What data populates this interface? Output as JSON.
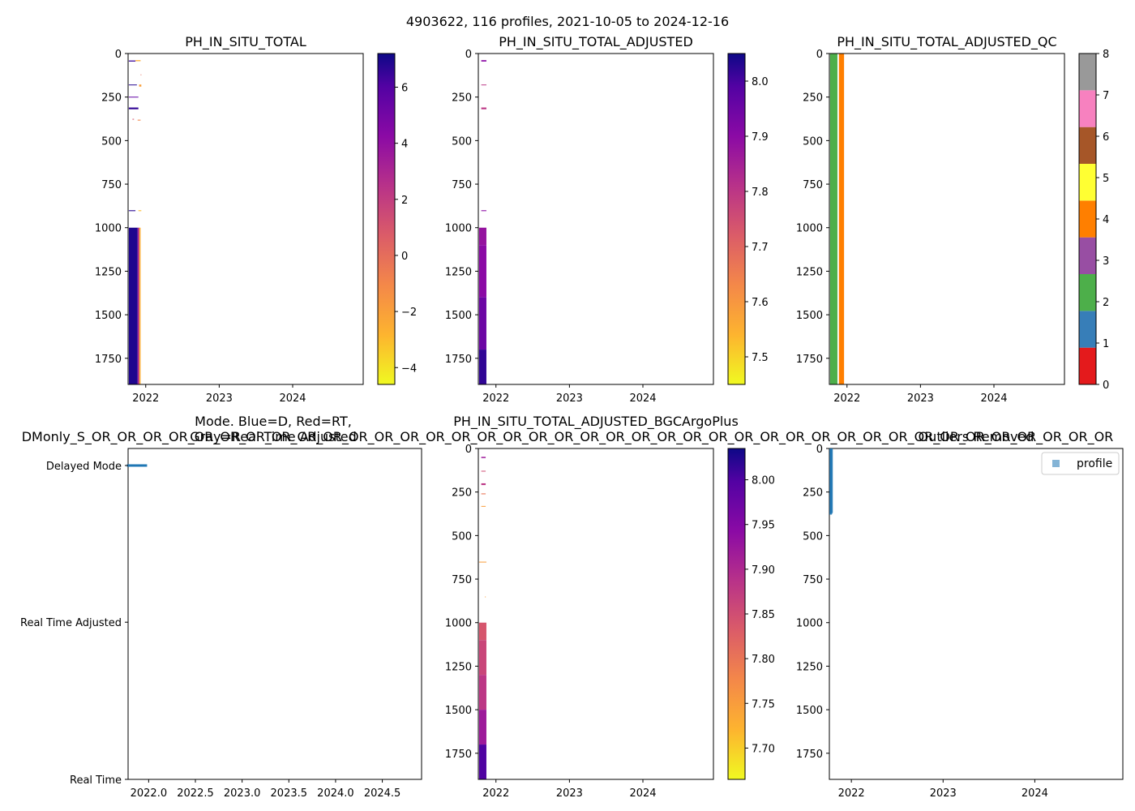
{
  "suptitle": "4903622, 116 profiles, 2021-10-05 to 2024-12-16",
  "chart_data": [
    {
      "type": "heatmap",
      "title": "PH_IN_SITU_TOTAL",
      "x_ticks": [
        "2022",
        "2023",
        "2024"
      ],
      "x_tick_years": [
        2022,
        2023,
        2024
      ],
      "xlim_years": [
        2021.76,
        2024.96
      ],
      "y_ticks": [
        0,
        250,
        500,
        750,
        1000,
        1250,
        1500,
        1750
      ],
      "ylim": [
        1900,
        0
      ],
      "colormap": "plasma_r",
      "colorbar_ticks": [
        -4,
        -2,
        0,
        2,
        4,
        6
      ],
      "colorbar_range": [
        -4.6,
        7.2
      ],
      "segments": [
        {
          "t0": 2021.77,
          "t1": 2021.86,
          "d0": 40,
          "d1": 46,
          "value": 6.5
        },
        {
          "t0": 2021.86,
          "t1": 2021.93,
          "d0": 38,
          "d1": 44,
          "value": -2.5
        },
        {
          "t0": 2021.93,
          "t1": 2021.94,
          "d0": 120,
          "d1": 124,
          "value": 0
        },
        {
          "t0": 2021.77,
          "t1": 2021.88,
          "d0": 178,
          "d1": 181,
          "value": 6.8
        },
        {
          "t0": 2021.91,
          "t1": 2021.94,
          "d0": 178,
          "d1": 190,
          "value": -2.0
        },
        {
          "t0": 2021.77,
          "t1": 2021.9,
          "d0": 248,
          "d1": 252,
          "value": 5.5
        },
        {
          "t0": 2021.77,
          "t1": 2021.9,
          "d0": 310,
          "d1": 320,
          "value": 6.6
        },
        {
          "t0": 2021.82,
          "t1": 2021.84,
          "d0": 375,
          "d1": 380,
          "value": 1.0
        },
        {
          "t0": 2021.89,
          "t1": 2021.93,
          "d0": 380,
          "d1": 385,
          "value": -1.0
        },
        {
          "t0": 2021.77,
          "t1": 2021.86,
          "d0": 900,
          "d1": 905,
          "value": 6.8
        },
        {
          "t0": 2021.9,
          "t1": 2021.94,
          "d0": 900,
          "d1": 905,
          "value": -3.0
        },
        {
          "t0": 2021.77,
          "t1": 2021.89,
          "d0": 1000,
          "d1": 1900,
          "value": 6.9
        },
        {
          "t0": 2021.89,
          "t1": 2021.91,
          "d0": 1000,
          "d1": 1900,
          "value": 3.5
        },
        {
          "t0": 2021.91,
          "t1": 2021.93,
          "d0": 1000,
          "d1": 1900,
          "value": -2.6
        }
      ]
    },
    {
      "type": "heatmap",
      "title": "PH_IN_SITU_TOTAL_ADJUSTED",
      "x_ticks": [
        "2022",
        "2023",
        "2024"
      ],
      "x_tick_years": [
        2022,
        2023,
        2024
      ],
      "xlim_years": [
        2021.76,
        2024.96
      ],
      "y_ticks": [
        0,
        250,
        500,
        750,
        1000,
        1250,
        1500,
        1750
      ],
      "ylim": [
        1900,
        0
      ],
      "colormap": "plasma_r",
      "colorbar_ticks": [
        "7.5",
        "7.6",
        "7.7",
        "7.8",
        "7.9",
        "8.0"
      ],
      "colorbar_range": [
        7.45,
        8.05
      ],
      "segments": [
        {
          "t0": 2021.8,
          "t1": 2021.87,
          "d0": 38,
          "d1": 46,
          "value": 7.9
        },
        {
          "t0": 2021.8,
          "t1": 2021.87,
          "d0": 178,
          "d1": 181,
          "value": 7.8
        },
        {
          "t0": 2021.8,
          "t1": 2021.87,
          "d0": 310,
          "d1": 320,
          "value": 7.8
        },
        {
          "t0": 2021.8,
          "t1": 2021.87,
          "d0": 900,
          "d1": 905,
          "value": 7.9
        },
        {
          "t0": 2021.77,
          "t1": 2021.87,
          "d0": 1000,
          "d1": 1100,
          "value": 7.88
        },
        {
          "t0": 2021.77,
          "t1": 2021.87,
          "d0": 1100,
          "d1": 1400,
          "value": 7.9
        },
        {
          "t0": 2021.77,
          "t1": 2021.87,
          "d0": 1400,
          "d1": 1700,
          "value": 7.95
        },
        {
          "t0": 2021.77,
          "t1": 2021.87,
          "d0": 1700,
          "d1": 1900,
          "value": 8.02
        }
      ]
    },
    {
      "type": "heatmap",
      "title": "PH_IN_SITU_TOTAL_ADJUSTED_QC",
      "x_ticks": [
        "2022",
        "2023",
        "2024"
      ],
      "x_tick_years": [
        2022,
        2023,
        2024
      ],
      "xlim_years": [
        2021.76,
        2024.96
      ],
      "y_ticks": [
        0,
        250,
        500,
        750,
        1000,
        1250,
        1500,
        1750
      ],
      "ylim": [
        1900,
        0
      ],
      "colormap": "Set1 (qualitative)",
      "colorbar_ticks": [
        "0",
        "1",
        "2",
        "3",
        "4",
        "5",
        "6",
        "7",
        "8"
      ],
      "colorbar_range": [
        0,
        8
      ],
      "categories_colors": [
        "#e41a1c",
        "#377eb8",
        "#4daf4a",
        "#984ea3",
        "#ff7f00",
        "#ffff33",
        "#a65628",
        "#f781bf",
        "#999999"
      ],
      "segments": [
        {
          "t0": 2021.77,
          "t1": 2021.87,
          "d0": 0,
          "d1": 1900,
          "value": 2
        },
        {
          "t0": 2021.89,
          "t1": 2021.96,
          "d0": 0,
          "d1": 1900,
          "value": 4
        }
      ]
    },
    {
      "type": "scatter",
      "title_line1": "Mode. Blue=D, Red=RT,",
      "title_line2": "Gray=Real Time Adjusted",
      "y_categories": [
        "Real Time",
        "Real Time Adjusted",
        "Delayed Mode"
      ],
      "x_ticks": [
        "2022.0",
        "2022.5",
        "2023.0",
        "2023.5",
        "2024.0",
        "2024.5"
      ],
      "x_tick_years": [
        2022.0,
        2022.5,
        2023.0,
        2023.5,
        2024.0,
        2024.5
      ],
      "xlim_years": [
        2021.78,
        2024.92
      ],
      "marker_color": "#1f77b4",
      "points": [
        {
          "x": 2021.78,
          "mode": "Delayed Mode"
        },
        {
          "x": 2021.79,
          "mode": "Delayed Mode"
        },
        {
          "x": 2021.8,
          "mode": "Delayed Mode"
        },
        {
          "x": 2021.81,
          "mode": "Delayed Mode"
        },
        {
          "x": 2021.82,
          "mode": "Delayed Mode"
        },
        {
          "x": 2021.83,
          "mode": "Delayed Mode"
        },
        {
          "x": 2021.84,
          "mode": "Delayed Mode"
        },
        {
          "x": 2021.85,
          "mode": "Delayed Mode"
        },
        {
          "x": 2021.86,
          "mode": "Delayed Mode"
        },
        {
          "x": 2021.87,
          "mode": "Delayed Mode"
        },
        {
          "x": 2021.88,
          "mode": "Delayed Mode"
        },
        {
          "x": 2021.89,
          "mode": "Delayed Mode"
        },
        {
          "x": 2021.9,
          "mode": "Delayed Mode"
        },
        {
          "x": 2021.91,
          "mode": "Delayed Mode"
        },
        {
          "x": 2021.92,
          "mode": "Delayed Mode"
        },
        {
          "x": 2021.93,
          "mode": "Delayed Mode"
        },
        {
          "x": 2021.94,
          "mode": "Delayed Mode"
        },
        {
          "x": 2021.95,
          "mode": "Delayed Mode"
        },
        {
          "x": 2021.96,
          "mode": "Delayed Mode"
        },
        {
          "x": 2021.97,
          "mode": "Delayed Mode"
        }
      ]
    },
    {
      "type": "heatmap",
      "title": "PH_IN_SITU_TOTAL_ADJUSTED_BGCArgoPlus",
      "x_ticks": [
        "2022",
        "2023",
        "2024"
      ],
      "x_tick_years": [
        2022,
        2023,
        2024
      ],
      "xlim_years": [
        2021.76,
        2024.96
      ],
      "y_ticks": [
        0,
        250,
        500,
        750,
        1000,
        1250,
        1500,
        1750
      ],
      "ylim": [
        1900,
        0
      ],
      "colormap": "plasma_r",
      "colorbar_ticks": [
        "7.70",
        "7.75",
        "7.80",
        "7.85",
        "7.90",
        "7.95",
        "8.00"
      ],
      "colorbar_range": [
        7.665,
        8.035
      ],
      "segments": [
        {
          "t0": 2021.8,
          "t1": 2021.86,
          "d0": 48,
          "d1": 55,
          "value": 7.92
        },
        {
          "t0": 2021.8,
          "t1": 2021.86,
          "d0": 128,
          "d1": 131,
          "value": 7.85
        },
        {
          "t0": 2021.8,
          "t1": 2021.86,
          "d0": 200,
          "d1": 210,
          "value": 7.88
        },
        {
          "t0": 2021.8,
          "t1": 2021.86,
          "d0": 258,
          "d1": 263,
          "value": 7.8
        },
        {
          "t0": 2021.8,
          "t1": 2021.86,
          "d0": 330,
          "d1": 333,
          "value": 7.75
        },
        {
          "t0": 2021.77,
          "t1": 2021.87,
          "d0": 650,
          "d1": 653,
          "value": 7.75
        },
        {
          "t0": 2021.85,
          "t1": 2021.86,
          "d0": 850,
          "d1": 853,
          "value": 7.75
        },
        {
          "t0": 2021.77,
          "t1": 2021.87,
          "d0": 1000,
          "d1": 1100,
          "value": 7.84
        },
        {
          "t0": 2021.77,
          "t1": 2021.87,
          "d0": 1100,
          "d1": 1300,
          "value": 7.86
        },
        {
          "t0": 2021.77,
          "t1": 2021.87,
          "d0": 1300,
          "d1": 1500,
          "value": 7.88
        },
        {
          "t0": 2021.77,
          "t1": 2021.87,
          "d0": 1500,
          "d1": 1700,
          "value": 7.92
        },
        {
          "t0": 2021.77,
          "t1": 2021.87,
          "d0": 1700,
          "d1": 1900,
          "value": 8.0
        }
      ]
    },
    {
      "type": "scatter",
      "title": "Outliers Removed",
      "x_ticks": [
        "2022",
        "2023",
        "2024"
      ],
      "x_tick_years": [
        2022,
        2023,
        2024
      ],
      "xlim_years": [
        2021.76,
        2024.96
      ],
      "y_ticks": [
        0,
        250,
        500,
        750,
        1000,
        1250,
        1500,
        1750
      ],
      "ylim": [
        1900,
        0
      ],
      "legend": [
        "profile"
      ],
      "legend_position": "top-right",
      "marker_color": "#1f77b4",
      "columns": [
        {
          "t": 2021.77,
          "d0": 0,
          "d1": 380
        },
        {
          "t": 2021.775,
          "d0": 0,
          "d1": 375
        },
        {
          "t": 2021.78,
          "d0": 0,
          "d1": 370
        }
      ]
    }
  ],
  "overlay_text": "DMonly_S_OR_OR_OR_OR_OR_OR_OR_OR_OR_OR_OR_OR_OR_OR_OR_OR_OR_OR_OR_OR_OR_OR_OR_OR_OR_OR_OR_OR_OR_OR_OR_OR_OR_OR_OR_OR_OR_OR_OR_OR"
}
